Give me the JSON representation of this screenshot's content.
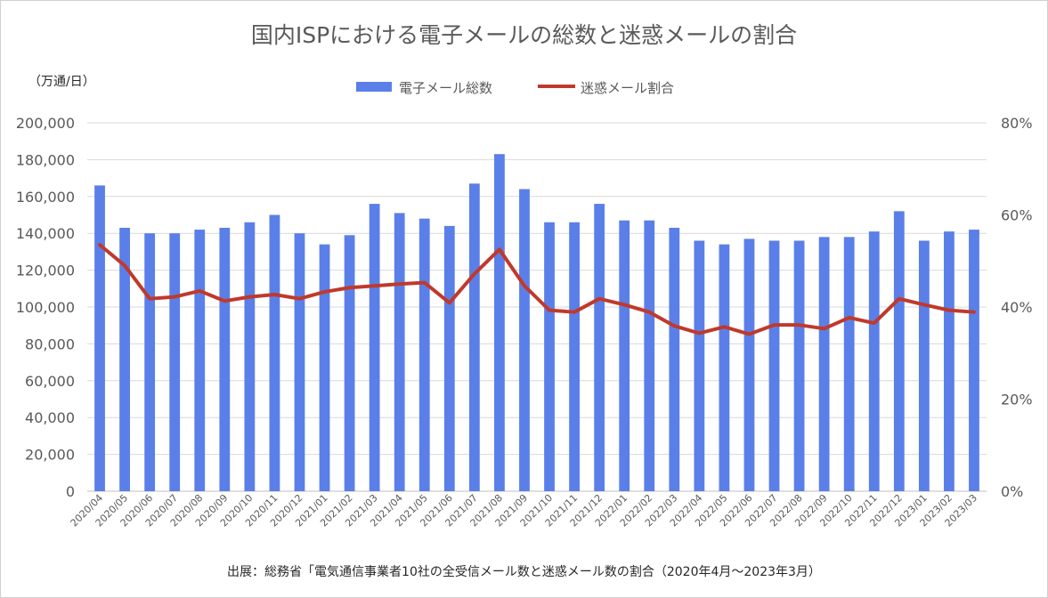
{
  "chart_data": {
    "type": "bar+line",
    "title": "国内ISPにおける電子メールの総数と迷惑メールの割合",
    "y_left_label": "（万通/日）",
    "source": "出展：総務省「電気通信事業者10社の全受信メール数と迷惑メール数の割合（2020年4月〜2023年3月）",
    "legend_position": "top-center",
    "grid": true,
    "y_left": {
      "min": 0,
      "max": 200000,
      "step": 20000,
      "ticks": [
        "0",
        "20,000",
        "40,000",
        "60,000",
        "80,000",
        "100,000",
        "120,000",
        "140,000",
        "160,000",
        "180,000",
        "200,000"
      ]
    },
    "y_right": {
      "min": 0,
      "max": 0.8,
      "step": 0.2,
      "ticks": [
        "0%",
        "20%",
        "40%",
        "60%",
        "80%"
      ]
    },
    "categories": [
      "2020/04",
      "2020/05",
      "2020/06",
      "2020/07",
      "2020/08",
      "2020/09",
      "2020/10",
      "2020/11",
      "2020/12",
      "2021/01",
      "2021/02",
      "2021/03",
      "2021/04",
      "2021/05",
      "2021/06",
      "2021/07",
      "2021/08",
      "2021/09",
      "2021/10",
      "2021/11",
      "2021/12",
      "2022/01",
      "2022/02",
      "2022/03",
      "2022/04",
      "2022/05",
      "2022/06",
      "2022/07",
      "2022/08",
      "2022/09",
      "2022/10",
      "2022/11",
      "2022/12",
      "2023/01",
      "2023/02",
      "2023/03"
    ],
    "series": [
      {
        "name": "電子メール総数",
        "type": "bar",
        "axis": "left",
        "color": "#5b7fe8",
        "values": [
          166000,
          143000,
          140000,
          140000,
          142000,
          143000,
          146000,
          150000,
          140000,
          134000,
          139000,
          156000,
          151000,
          148000,
          144000,
          167000,
          183000,
          164000,
          146000,
          146000,
          156000,
          147000,
          147000,
          143000,
          136000,
          134000,
          137000,
          136000,
          136000,
          138000,
          138000,
          141000,
          152000,
          136000,
          141000,
          142000
        ]
      },
      {
        "name": "迷惑メール割合",
        "type": "line",
        "axis": "right",
        "color": "#c0392b",
        "values": [
          0.535,
          0.49,
          0.418,
          0.422,
          0.435,
          0.413,
          0.422,
          0.427,
          0.418,
          0.433,
          0.442,
          0.446,
          0.45,
          0.453,
          0.409,
          0.472,
          0.525,
          0.446,
          0.393,
          0.389,
          0.418,
          0.405,
          0.389,
          0.359,
          0.343,
          0.357,
          0.341,
          0.361,
          0.361,
          0.353,
          0.377,
          0.365,
          0.418,
          0.405,
          0.393,
          0.389
        ]
      }
    ]
  }
}
